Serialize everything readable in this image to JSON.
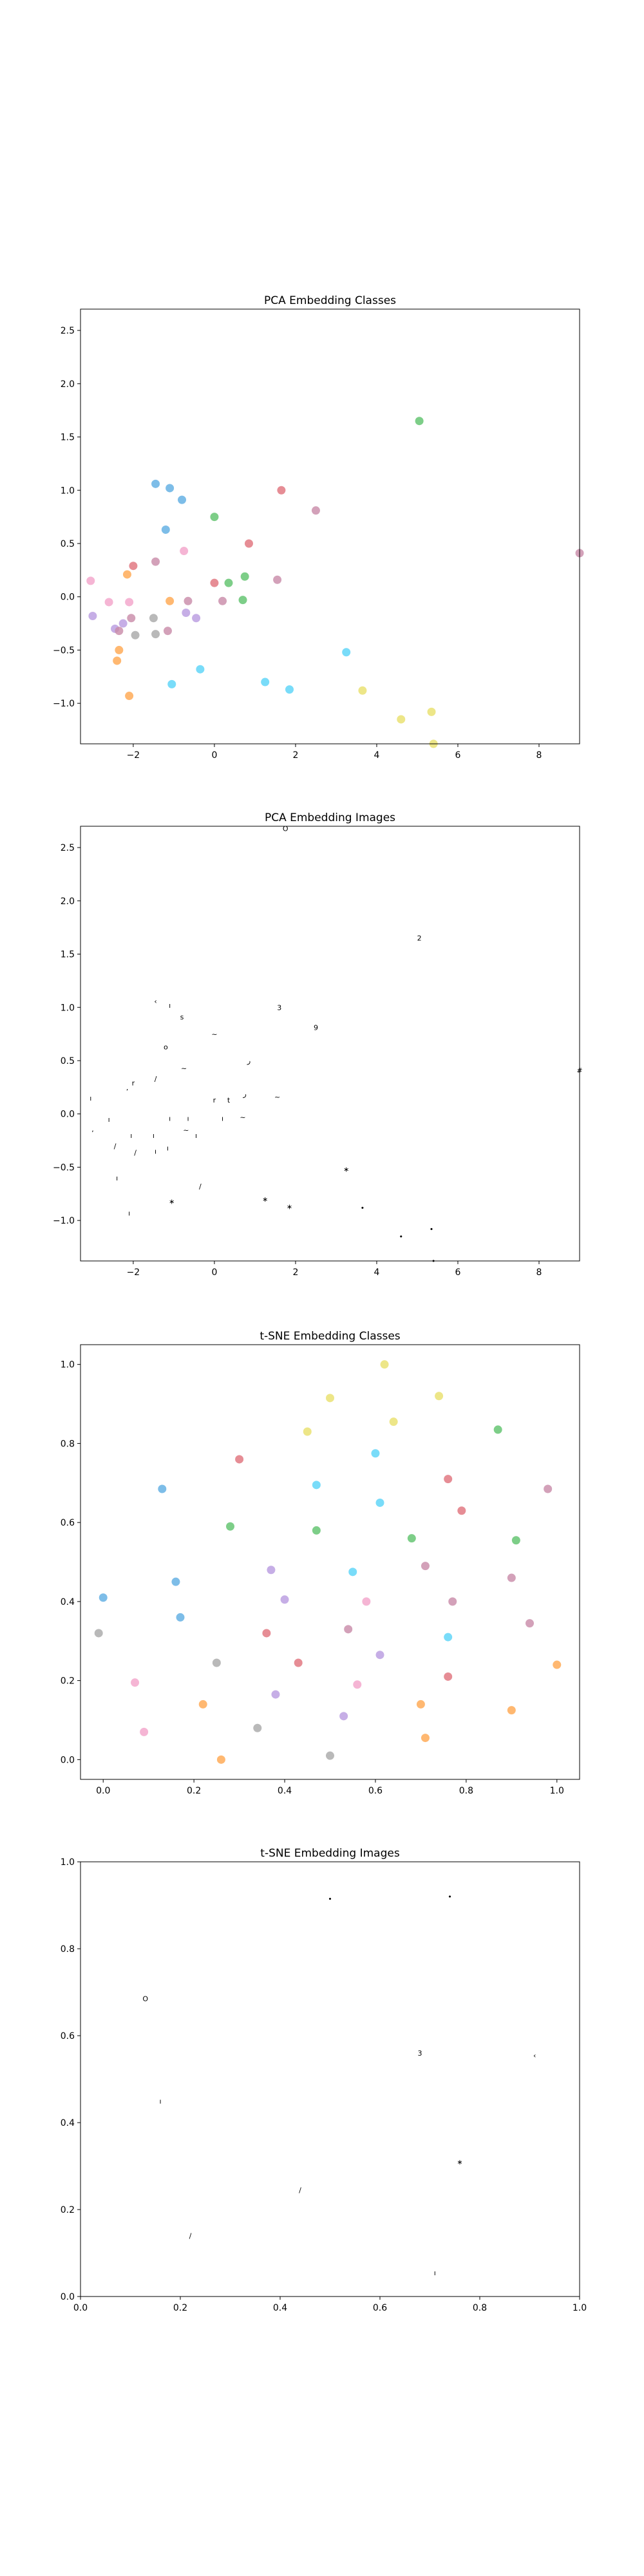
{
  "chart_data": [
    {
      "type": "scatter",
      "title": "PCA Embedding Classes",
      "xlabel": "",
      "ylabel": "",
      "xlim": [
        -3.3,
        9.0
      ],
      "ylim": [
        -1.38,
        2.7
      ],
      "xticks": [
        -2,
        0,
        2,
        4,
        6,
        8
      ],
      "yticks": [
        -1.0,
        -0.5,
        0.0,
        0.5,
        1.0,
        1.5,
        2.0,
        2.5
      ],
      "grid": false,
      "series": [
        {
          "color": "#ffa64d",
          "points": [
            [
              -2.4,
              -0.6
            ],
            [
              -2.35,
              -0.5
            ],
            [
              -2.1,
              -0.93
            ],
            [
              -2.15,
              0.21
            ],
            [
              -1.1,
              -0.04
            ]
          ]
        },
        {
          "color": "#5dade2",
          "points": [
            [
              -1.45,
              1.06
            ],
            [
              -1.1,
              1.02
            ],
            [
              -0.8,
              0.91
            ],
            [
              -1.2,
              0.63
            ]
          ]
        },
        {
          "color": "#58d3f7",
          "points": [
            [
              -1.05,
              -0.82
            ],
            [
              -0.35,
              -0.68
            ],
            [
              1.25,
              -0.8
            ],
            [
              1.85,
              -0.87
            ],
            [
              3.25,
              -0.52
            ]
          ]
        },
        {
          "color": "#e8e06a",
          "points": [
            [
              3.65,
              -0.88
            ],
            [
              4.6,
              -1.15
            ],
            [
              5.35,
              -1.08
            ],
            [
              5.4,
              -1.38
            ]
          ]
        },
        {
          "color": "#5cc26a",
          "points": [
            [
              0.0,
              0.75
            ],
            [
              0.35,
              0.13
            ],
            [
              0.7,
              -0.03
            ],
            [
              0.75,
              0.19
            ],
            [
              5.05,
              1.65
            ]
          ]
        },
        {
          "color": "#e0707a",
          "points": [
            [
              -2.0,
              0.29
            ],
            [
              0.0,
              0.13
            ],
            [
              0.85,
              0.5
            ],
            [
              1.65,
              1.0
            ]
          ]
        },
        {
          "color": "#f3a3c9",
          "points": [
            [
              -3.05,
              0.15
            ],
            [
              -2.6,
              -0.05
            ],
            [
              -2.1,
              -0.05
            ],
            [
              -0.75,
              0.43
            ]
          ]
        },
        {
          "color": "#b89ae0",
          "points": [
            [
              -3.0,
              -0.18
            ],
            [
              -2.45,
              -0.3
            ],
            [
              -2.25,
              -0.25
            ],
            [
              -0.7,
              -0.15
            ],
            [
              -0.45,
              -0.2
            ]
          ]
        },
        {
          "color": "#c88aa8",
          "points": [
            [
              -2.35,
              -0.32
            ],
            [
              -2.05,
              -0.2
            ],
            [
              -1.45,
              0.33
            ],
            [
              -1.15,
              -0.32
            ],
            [
              -0.65,
              -0.04
            ],
            [
              0.2,
              -0.04
            ],
            [
              1.55,
              0.16
            ],
            [
              2.5,
              0.81
            ],
            [
              9.0,
              0.41
            ]
          ]
        },
        {
          "color": "#a8a8a8",
          "points": [
            [
              -1.95,
              -0.36
            ],
            [
              -1.45,
              -0.35
            ],
            [
              -1.5,
              -0.2
            ]
          ]
        }
      ]
    },
    {
      "type": "scatter",
      "title": "PCA Embedding Images",
      "xlabel": "",
      "ylabel": "",
      "xlim": [
        -3.3,
        9.0
      ],
      "ylim": [
        -1.38,
        2.7
      ],
      "xticks": [
        -2,
        0,
        2,
        4,
        6,
        8
      ],
      "yticks": [
        -1.0,
        -0.5,
        0.0,
        0.5,
        1.0,
        1.5,
        2.0,
        2.5
      ],
      "grid": false,
      "markers": [
        {
          "x": 1.75,
          "y": 2.68,
          "label": "O",
          "w": 10,
          "h": 10
        },
        {
          "x": 5.05,
          "y": 1.65,
          "label": "2",
          "w": 10,
          "h": 12
        },
        {
          "x": 1.6,
          "y": 1.0,
          "label": "3",
          "w": 8,
          "h": 10
        },
        {
          "x": 2.5,
          "y": 0.81,
          "label": "9",
          "w": 9,
          "h": 11
        },
        {
          "x": -1.45,
          "y": 1.06,
          "label": "‹",
          "w": 6,
          "h": 8
        },
        {
          "x": -1.1,
          "y": 1.02,
          "label": "ı",
          "w": 5,
          "h": 7
        },
        {
          "x": -0.8,
          "y": 0.91,
          "label": "s",
          "w": 6,
          "h": 8
        },
        {
          "x": 0.0,
          "y": 0.75,
          "label": "~",
          "w": 7,
          "h": 7
        },
        {
          "x": -1.2,
          "y": 0.63,
          "label": "o",
          "w": 7,
          "h": 7
        },
        {
          "x": 0.85,
          "y": 0.5,
          "label": "ر",
          "w": 6,
          "h": 7
        },
        {
          "x": -0.75,
          "y": 0.43,
          "label": "~",
          "w": 6,
          "h": 5
        },
        {
          "x": -1.45,
          "y": 0.33,
          "label": "∕",
          "w": 5,
          "h": 7
        },
        {
          "x": -2.0,
          "y": 0.29,
          "label": "r",
          "w": 5,
          "h": 6
        },
        {
          "x": -2.15,
          "y": 0.21,
          "label": "ʼ",
          "w": 5,
          "h": 6
        },
        {
          "x": 0.75,
          "y": 0.19,
          "label": "ر",
          "w": 6,
          "h": 7
        },
        {
          "x": 1.55,
          "y": 0.16,
          "label": "~",
          "w": 8,
          "h": 5
        },
        {
          "x": -3.05,
          "y": 0.15,
          "label": "ı",
          "w": 4,
          "h": 5
        },
        {
          "x": 0.0,
          "y": 0.13,
          "label": "r",
          "w": 6,
          "h": 7
        },
        {
          "x": 0.35,
          "y": 0.13,
          "label": "t",
          "w": 6,
          "h": 7
        },
        {
          "x": 9.0,
          "y": 0.41,
          "label": "#",
          "w": 10,
          "h": 8
        },
        {
          "x": 3.25,
          "y": -0.52,
          "label": "∗",
          "w": 8,
          "h": 7
        },
        {
          "x": -2.6,
          "y": -0.05,
          "label": "ı",
          "w": 4,
          "h": 5
        },
        {
          "x": -1.1,
          "y": -0.04,
          "label": "ı",
          "w": 4,
          "h": 6
        },
        {
          "x": -0.65,
          "y": -0.04,
          "label": "ı",
          "w": 4,
          "h": 5
        },
        {
          "x": 0.2,
          "y": -0.04,
          "label": "ı",
          "w": 4,
          "h": 5
        },
        {
          "x": 0.7,
          "y": -0.03,
          "label": "~",
          "w": 6,
          "h": 4
        },
        {
          "x": -3.0,
          "y": -0.18,
          "label": "ʼ",
          "w": 5,
          "h": 5
        },
        {
          "x": -2.05,
          "y": -0.2,
          "label": "ı",
          "w": 4,
          "h": 6
        },
        {
          "x": -1.5,
          "y": -0.2,
          "label": "ı",
          "w": 4,
          "h": 6
        },
        {
          "x": -0.7,
          "y": -0.15,
          "label": "~",
          "w": 6,
          "h": 4
        },
        {
          "x": -0.45,
          "y": -0.2,
          "label": "ı",
          "w": 4,
          "h": 5
        },
        {
          "x": -2.45,
          "y": -0.3,
          "label": "∕",
          "w": 4,
          "h": 5
        },
        {
          "x": -1.95,
          "y": -0.36,
          "label": "∕",
          "w": 4,
          "h": 5
        },
        {
          "x": -1.45,
          "y": -0.35,
          "label": "ı",
          "w": 4,
          "h": 5
        },
        {
          "x": -1.15,
          "y": -0.32,
          "label": "ı",
          "w": 4,
          "h": 5
        },
        {
          "x": -2.4,
          "y": -0.6,
          "label": "ı",
          "w": 4,
          "h": 6
        },
        {
          "x": -0.35,
          "y": -0.68,
          "label": "∕",
          "w": 5,
          "h": 6
        },
        {
          "x": -1.05,
          "y": -0.82,
          "label": "∗",
          "w": 5,
          "h": 5
        },
        {
          "x": 1.25,
          "y": -0.8,
          "label": "∗",
          "w": 7,
          "h": 5
        },
        {
          "x": 1.85,
          "y": -0.87,
          "label": "∗",
          "w": 6,
          "h": 5
        },
        {
          "x": -2.1,
          "y": -0.93,
          "label": "ı",
          "w": 4,
          "h": 6
        },
        {
          "x": 3.65,
          "y": -0.88,
          "label": "•",
          "w": 6,
          "h": 6
        },
        {
          "x": 4.6,
          "y": -1.15,
          "label": "•",
          "w": 7,
          "h": 5
        },
        {
          "x": 5.35,
          "y": -1.08,
          "label": "•",
          "w": 7,
          "h": 6
        },
        {
          "x": 5.4,
          "y": -1.38,
          "label": "•",
          "w": 7,
          "h": 6
        }
      ]
    },
    {
      "type": "scatter",
      "title": "t-SNE Embedding Classes",
      "xlabel": "",
      "ylabel": "",
      "xlim": [
        -0.05,
        1.05
      ],
      "ylim": [
        -0.05,
        1.05
      ],
      "xticks": [
        0.0,
        0.2,
        0.4,
        0.6,
        0.8,
        1.0
      ],
      "yticks": [
        0.0,
        0.2,
        0.4,
        0.6,
        0.8,
        1.0
      ],
      "grid": false,
      "series": [
        {
          "color": "#e8e06a",
          "points": [
            [
              0.62,
              1.0
            ],
            [
              0.5,
              0.915
            ],
            [
              0.74,
              0.92
            ],
            [
              0.45,
              0.83
            ],
            [
              0.64,
              0.855
            ]
          ]
        },
        {
          "color": "#5cc26a",
          "points": [
            [
              0.87,
              0.835
            ],
            [
              0.28,
              0.59
            ],
            [
              0.47,
              0.58
            ],
            [
              0.68,
              0.56
            ],
            [
              0.91,
              0.555
            ]
          ]
        },
        {
          "color": "#58d3f7",
          "points": [
            [
              0.6,
              0.775
            ],
            [
              0.47,
              0.695
            ],
            [
              0.61,
              0.65
            ],
            [
              0.55,
              0.475
            ],
            [
              0.76,
              0.31
            ]
          ]
        },
        {
          "color": "#5dade2",
          "points": [
            [
              0.13,
              0.685
            ],
            [
              0.0,
              0.41
            ],
            [
              0.16,
              0.45
            ],
            [
              0.17,
              0.36
            ]
          ]
        },
        {
          "color": "#e0707a",
          "points": [
            [
              0.3,
              0.76
            ],
            [
              0.76,
              0.71
            ],
            [
              0.79,
              0.63
            ],
            [
              0.36,
              0.32
            ],
            [
              0.43,
              0.245
            ],
            [
              0.76,
              0.21
            ]
          ]
        },
        {
          "color": "#c88aa8",
          "points": [
            [
              0.98,
              0.685
            ],
            [
              0.71,
              0.49
            ],
            [
              0.77,
              0.4
            ],
            [
              0.9,
              0.46
            ],
            [
              0.94,
              0.345
            ],
            [
              0.54,
              0.33
            ]
          ]
        },
        {
          "color": "#b89ae0",
          "points": [
            [
              0.37,
              0.48
            ],
            [
              0.4,
              0.405
            ],
            [
              0.61,
              0.265
            ],
            [
              0.38,
              0.165
            ],
            [
              0.53,
              0.11
            ]
          ]
        },
        {
          "color": "#f3a3c9",
          "points": [
            [
              0.58,
              0.4
            ],
            [
              0.07,
              0.195
            ],
            [
              0.09,
              0.07
            ],
            [
              0.56,
              0.19
            ]
          ]
        },
        {
          "color": "#a8a8a8",
          "points": [
            [
              0.25,
              0.245
            ],
            [
              -0.01,
              0.32
            ],
            [
              0.34,
              0.08
            ],
            [
              0.5,
              0.01
            ]
          ]
        },
        {
          "color": "#ffa64d",
          "points": [
            [
              1.0,
              0.24
            ],
            [
              0.22,
              0.14
            ],
            [
              0.26,
              0.0
            ],
            [
              0.7,
              0.14
            ],
            [
              0.71,
              0.055
            ],
            [
              0.9,
              0.125
            ]
          ]
        }
      ]
    },
    {
      "type": "scatter",
      "title": "t-SNE Embedding Images",
      "xlabel": "",
      "ylabel": "",
      "xlim": [
        0.0,
        1.0
      ],
      "ylim": [
        0.0,
        1.0
      ],
      "xticks": [
        0.0,
        0.2,
        0.4,
        0.6,
        0.8,
        1.0
      ],
      "yticks": [
        0.0,
        0.2,
        0.4,
        0.6,
        0.8,
        1.0
      ],
      "grid": false,
      "markers": [
        {
          "x": 0.5,
          "y": 0.915,
          "label": "•",
          "w": 8,
          "h": 8
        },
        {
          "x": 0.74,
          "y": 0.92,
          "label": "•",
          "w": 8,
          "h": 8
        },
        {
          "x": 0.13,
          "y": 0.685,
          "label": "O",
          "w": 10,
          "h": 11
        },
        {
          "x": 0.68,
          "y": 0.56,
          "label": "3",
          "w": 8,
          "h": 9
        },
        {
          "x": 0.91,
          "y": 0.555,
          "label": "‹",
          "w": 6,
          "h": 7
        },
        {
          "x": 0.16,
          "y": 0.45,
          "label": "ı",
          "w": 5,
          "h": 8
        },
        {
          "x": 0.76,
          "y": 0.31,
          "label": "∗",
          "w": 6,
          "h": 5
        },
        {
          "x": 1.0,
          "y": 0.24,
          "label": "ı",
          "w": 4,
          "h": 7
        },
        {
          "x": 0.44,
          "y": 0.245,
          "label": "∕",
          "w": 6,
          "h": 7
        },
        {
          "x": 0.22,
          "y": 0.14,
          "label": "∕",
          "w": 5,
          "h": 6
        },
        {
          "x": 0.71,
          "y": 0.055,
          "label": "ı",
          "w": 4,
          "h": 6
        }
      ]
    }
  ]
}
